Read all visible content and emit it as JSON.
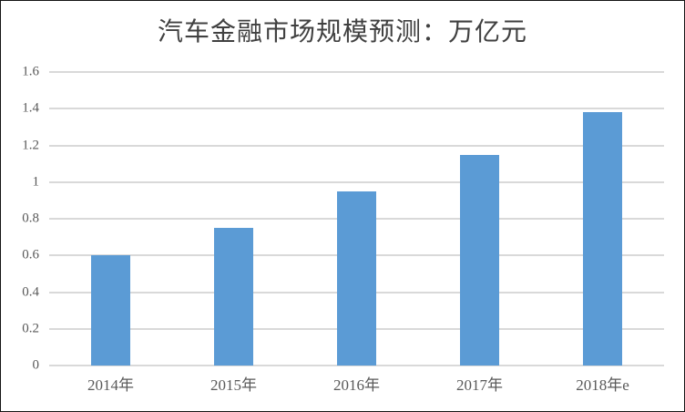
{
  "chart_data": {
    "type": "bar",
    "title": "汽车金融市场规模预测：万亿元",
    "categories": [
      "2014年",
      "2015年",
      "2016年",
      "2017年",
      "2018年e"
    ],
    "values": [
      0.6,
      0.75,
      0.95,
      1.15,
      1.38
    ],
    "xlabel": "",
    "ylabel": "",
    "ylim": [
      0,
      1.6
    ],
    "ytick_interval": 0.2,
    "yticks": [
      "0",
      "0.2",
      "0.4",
      "0.6",
      "0.8",
      "1",
      "1.2",
      "1.4",
      "1.6"
    ],
    "grid": "horizontal",
    "legend": "none",
    "colors": {
      "bar": "#5B9BD5",
      "gridline": "#D9D9D9",
      "axis_text": "#595959",
      "title_text": "#404040",
      "border": "#141414",
      "background": "#FFFFFF"
    }
  }
}
